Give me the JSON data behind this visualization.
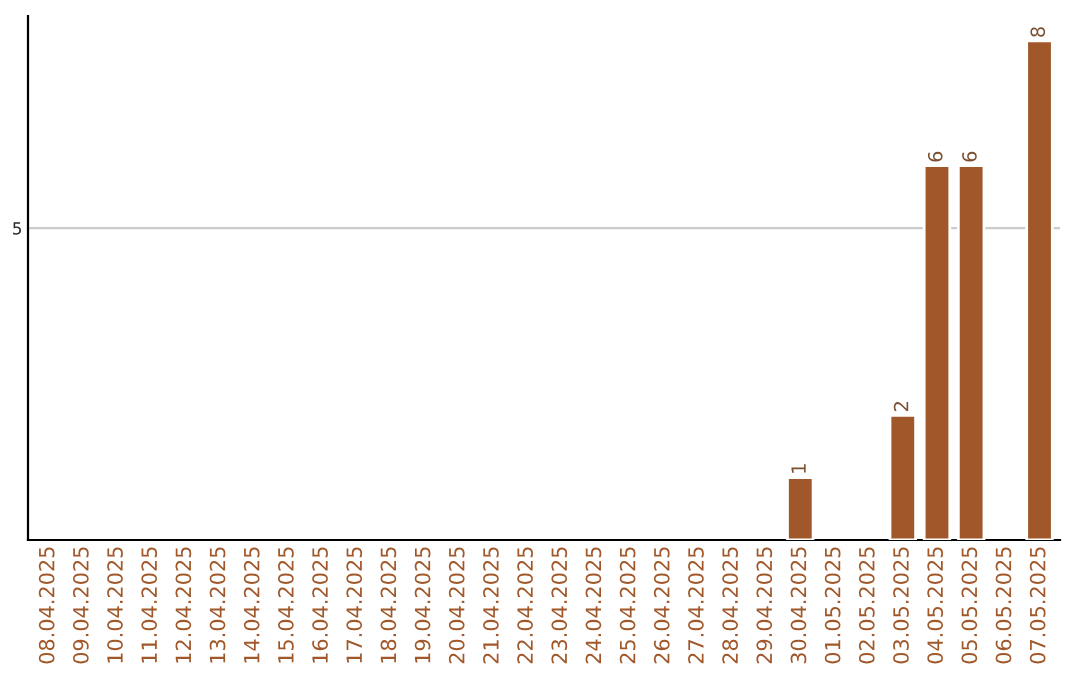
{
  "chart_data": {
    "type": "bar",
    "categories": [
      "08.04.2025",
      "09.04.2025",
      "10.04.2025",
      "11.04.2025",
      "12.04.2025",
      "13.04.2025",
      "14.04.2025",
      "15.04.2025",
      "16.04.2025",
      "17.04.2025",
      "18.04.2025",
      "19.04.2025",
      "20.04.2025",
      "21.04.2025",
      "22.04.2025",
      "23.04.2025",
      "24.04.2025",
      "25.04.2025",
      "26.04.2025",
      "27.04.2025",
      "28.04.2025",
      "29.04.2025",
      "30.04.2025",
      "01.05.2025",
      "02.05.2025",
      "03.05.2025",
      "04.05.2025",
      "05.05.2025",
      "06.05.2025",
      "07.05.2025"
    ],
    "values": [
      null,
      null,
      null,
      null,
      null,
      null,
      null,
      null,
      null,
      null,
      null,
      null,
      null,
      null,
      null,
      null,
      null,
      null,
      null,
      null,
      null,
      null,
      1,
      null,
      null,
      2,
      6,
      6,
      null,
      8
    ],
    "value_labels": [
      null,
      null,
      null,
      null,
      null,
      null,
      null,
      null,
      null,
      null,
      null,
      null,
      null,
      null,
      null,
      null,
      null,
      null,
      null,
      null,
      null,
      null,
      "1",
      null,
      null,
      "2",
      "6",
      "6",
      null,
      "8"
    ],
    "color": "#a0582a",
    "ylim": [
      0,
      8.4
    ],
    "yticks": [
      5
    ],
    "grid": "y",
    "legend": false
  }
}
